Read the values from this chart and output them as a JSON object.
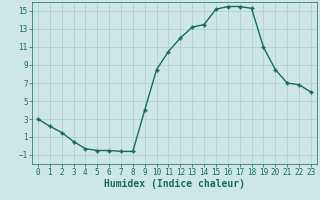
{
  "x": [
    0,
    1,
    2,
    3,
    4,
    5,
    6,
    7,
    8,
    9,
    10,
    11,
    12,
    13,
    14,
    15,
    16,
    17,
    18,
    19,
    20,
    21,
    22,
    23
  ],
  "y": [
    3.0,
    2.2,
    1.5,
    0.5,
    -0.3,
    -0.5,
    -0.5,
    -0.6,
    -0.6,
    4.0,
    8.5,
    10.5,
    12.0,
    13.2,
    13.5,
    15.2,
    15.5,
    15.5,
    15.3,
    11.0,
    8.5,
    7.0,
    6.8,
    6.0
  ],
  "line_color": "#1a6b5a",
  "marker": "P",
  "marker_size": 2.5,
  "bg_color": "#cde8e4",
  "grid_color": "#b0ccc8",
  "xlabel": "Humidex (Indice chaleur)",
  "ylim": [
    -2,
    16
  ],
  "xlim": [
    -0.5,
    23.5
  ],
  "yticks": [
    -1,
    1,
    3,
    5,
    7,
    9,
    11,
    13,
    15
  ],
  "xticks": [
    0,
    1,
    2,
    3,
    4,
    5,
    6,
    7,
    8,
    9,
    10,
    11,
    12,
    13,
    14,
    15,
    16,
    17,
    18,
    19,
    20,
    21,
    22,
    23
  ],
  "tick_fontsize": 5.5,
  "xlabel_fontsize": 7.0,
  "line_width": 1.0
}
